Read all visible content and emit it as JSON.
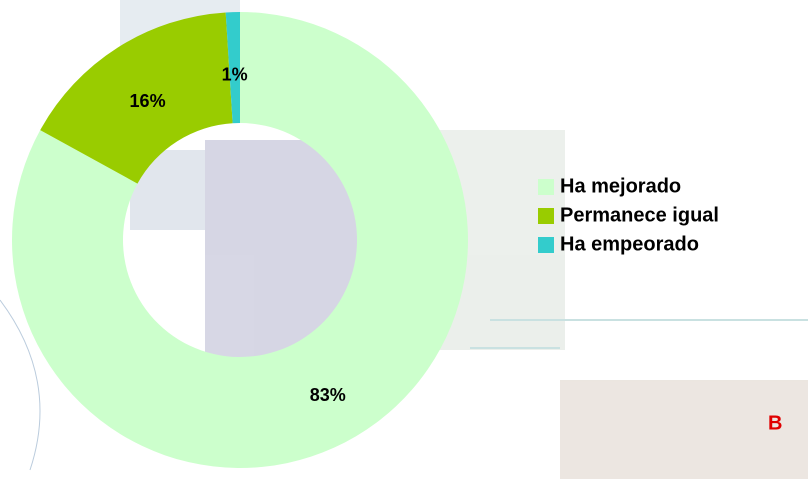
{
  "chart_data": {
    "type": "donut",
    "categories": [
      "Ha mejorado",
      "Permanece igual",
      "Ha empeorado"
    ],
    "values": [
      83,
      16,
      1
    ],
    "value_labels": [
      "83%",
      "16%",
      "1%"
    ],
    "colors": [
      "#ccffcc",
      "#99cc00",
      "#33cccc"
    ],
    "legend": "right",
    "annotation": "B"
  }
}
